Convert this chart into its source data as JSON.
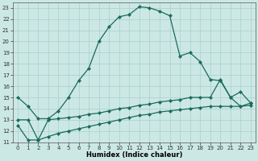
{
  "title": "",
  "xlabel": "Humidex (Indice chaleur)",
  "x": [
    0,
    1,
    2,
    3,
    4,
    5,
    6,
    7,
    8,
    9,
    10,
    11,
    12,
    13,
    14,
    15,
    16,
    17,
    18,
    19,
    20,
    21,
    22,
    23
  ],
  "line1": [
    15.0,
    14.2,
    13.1,
    13.1,
    13.8,
    15.0,
    16.5,
    17.6,
    20.0,
    21.3,
    22.2,
    22.4,
    23.1,
    23.0,
    22.7,
    22.3,
    18.7,
    19.0,
    18.2,
    16.6,
    16.5,
    15.0,
    15.5,
    14.5
  ],
  "line2": [
    13.0,
    13.0,
    11.2,
    13.0,
    13.1,
    13.2,
    13.3,
    13.5,
    13.6,
    13.8,
    14.0,
    14.1,
    14.3,
    14.4,
    14.6,
    14.7,
    14.8,
    15.0,
    15.0,
    15.0,
    16.6,
    15.0,
    14.2,
    14.5
  ],
  "line3": [
    12.5,
    11.2,
    11.2,
    11.5,
    11.8,
    12.0,
    12.2,
    12.4,
    12.6,
    12.8,
    13.0,
    13.2,
    13.4,
    13.5,
    13.7,
    13.8,
    13.9,
    14.0,
    14.1,
    14.2,
    14.2,
    14.2,
    14.2,
    14.3
  ],
  "ylim": [
    11,
    23.5
  ],
  "xlim": [
    -0.5,
    23.5
  ],
  "yticks": [
    11,
    12,
    13,
    14,
    15,
    16,
    17,
    18,
    19,
    20,
    21,
    22,
    23
  ],
  "xticks": [
    0,
    1,
    2,
    3,
    4,
    5,
    6,
    7,
    8,
    9,
    10,
    11,
    12,
    13,
    14,
    15,
    16,
    17,
    18,
    19,
    20,
    21,
    22,
    23
  ],
  "bg_color": "#cce8e4",
  "grid_color": "#aacfcb",
  "line_color": "#1a6b5a",
  "markersize": 2.2,
  "linewidth": 0.9,
  "tick_fontsize": 5.0,
  "label_fontsize": 6.0,
  "label_fontweight": "bold"
}
